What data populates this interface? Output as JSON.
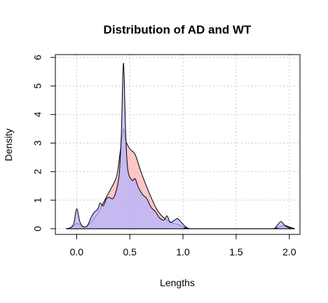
{
  "chart_data": {
    "type": "area",
    "title": "Distribution of AD and WT",
    "xlabel": "Lengths",
    "ylabel": "Density",
    "xlim": [
      -0.2,
      2.1
    ],
    "ylim": [
      -0.2,
      6.1
    ],
    "x_ticks": [
      0.0,
      0.5,
      1.0,
      1.5,
      2.0
    ],
    "x_tick_labels": [
      "0.0",
      "0.5",
      "1.0",
      "1.5",
      "2.0"
    ],
    "y_ticks": [
      0,
      1,
      2,
      3,
      4,
      5,
      6
    ],
    "y_tick_labels": [
      "0",
      "1",
      "2",
      "3",
      "4",
      "5",
      "6"
    ],
    "grid": true,
    "series": [
      {
        "color": "#ffb3b3",
        "opacity": 0.75,
        "points": [
          [
            -0.1,
            0
          ],
          [
            -0.05,
            0.04
          ],
          [
            0.0,
            0.18
          ],
          [
            0.03,
            0.15
          ],
          [
            0.06,
            0.05
          ],
          [
            0.1,
            0.1
          ],
          [
            0.15,
            0.3
          ],
          [
            0.2,
            0.55
          ],
          [
            0.25,
            0.9
          ],
          [
            0.3,
            1.25
          ],
          [
            0.35,
            1.6
          ],
          [
            0.38,
            1.9
          ],
          [
            0.41,
            2.7
          ],
          [
            0.44,
            3.5
          ],
          [
            0.46,
            3.1
          ],
          [
            0.5,
            2.8
          ],
          [
            0.55,
            2.6
          ],
          [
            0.6,
            2.05
          ],
          [
            0.65,
            1.55
          ],
          [
            0.7,
            1.1
          ],
          [
            0.75,
            0.7
          ],
          [
            0.8,
            0.45
          ],
          [
            0.85,
            0.3
          ],
          [
            0.9,
            0.2
          ],
          [
            0.95,
            0.15
          ],
          [
            1.0,
            0.07
          ],
          [
            1.05,
            0.02
          ],
          [
            1.1,
            0
          ],
          [
            1.8,
            0
          ],
          [
            1.86,
            0.01
          ],
          [
            1.9,
            0.05
          ],
          [
            1.95,
            0.12
          ],
          [
            2.0,
            0.06
          ],
          [
            2.05,
            0
          ]
        ]
      },
      {
        "color": "#b3b3ff",
        "opacity": 0.75,
        "points": [
          [
            -0.08,
            0
          ],
          [
            -0.03,
            0.15
          ],
          [
            0.0,
            0.7
          ],
          [
            0.03,
            0.25
          ],
          [
            0.06,
            0.08
          ],
          [
            0.1,
            0.1
          ],
          [
            0.13,
            0.35
          ],
          [
            0.16,
            0.55
          ],
          [
            0.2,
            0.7
          ],
          [
            0.22,
            0.9
          ],
          [
            0.25,
            0.8
          ],
          [
            0.28,
            1.05
          ],
          [
            0.31,
            1.1
          ],
          [
            0.34,
            1.05
          ],
          [
            0.37,
            1.3
          ],
          [
            0.4,
            1.9
          ],
          [
            0.42,
            3.3
          ],
          [
            0.44,
            5.8
          ],
          [
            0.46,
            3.5
          ],
          [
            0.48,
            2.1
          ],
          [
            0.52,
            1.7
          ],
          [
            0.55,
            1.75
          ],
          [
            0.58,
            1.45
          ],
          [
            0.62,
            1.2
          ],
          [
            0.66,
            1.05
          ],
          [
            0.7,
            0.75
          ],
          [
            0.74,
            0.6
          ],
          [
            0.78,
            0.38
          ],
          [
            0.82,
            0.3
          ],
          [
            0.85,
            0.45
          ],
          [
            0.88,
            0.22
          ],
          [
            0.92,
            0.3
          ],
          [
            0.95,
            0.35
          ],
          [
            0.99,
            0.2
          ],
          [
            1.03,
            0.06
          ],
          [
            1.08,
            0
          ],
          [
            1.82,
            0
          ],
          [
            1.87,
            0.05
          ],
          [
            1.92,
            0.25
          ],
          [
            1.96,
            0.1
          ],
          [
            2.0,
            0.03
          ],
          [
            2.04,
            0
          ]
        ]
      }
    ]
  }
}
